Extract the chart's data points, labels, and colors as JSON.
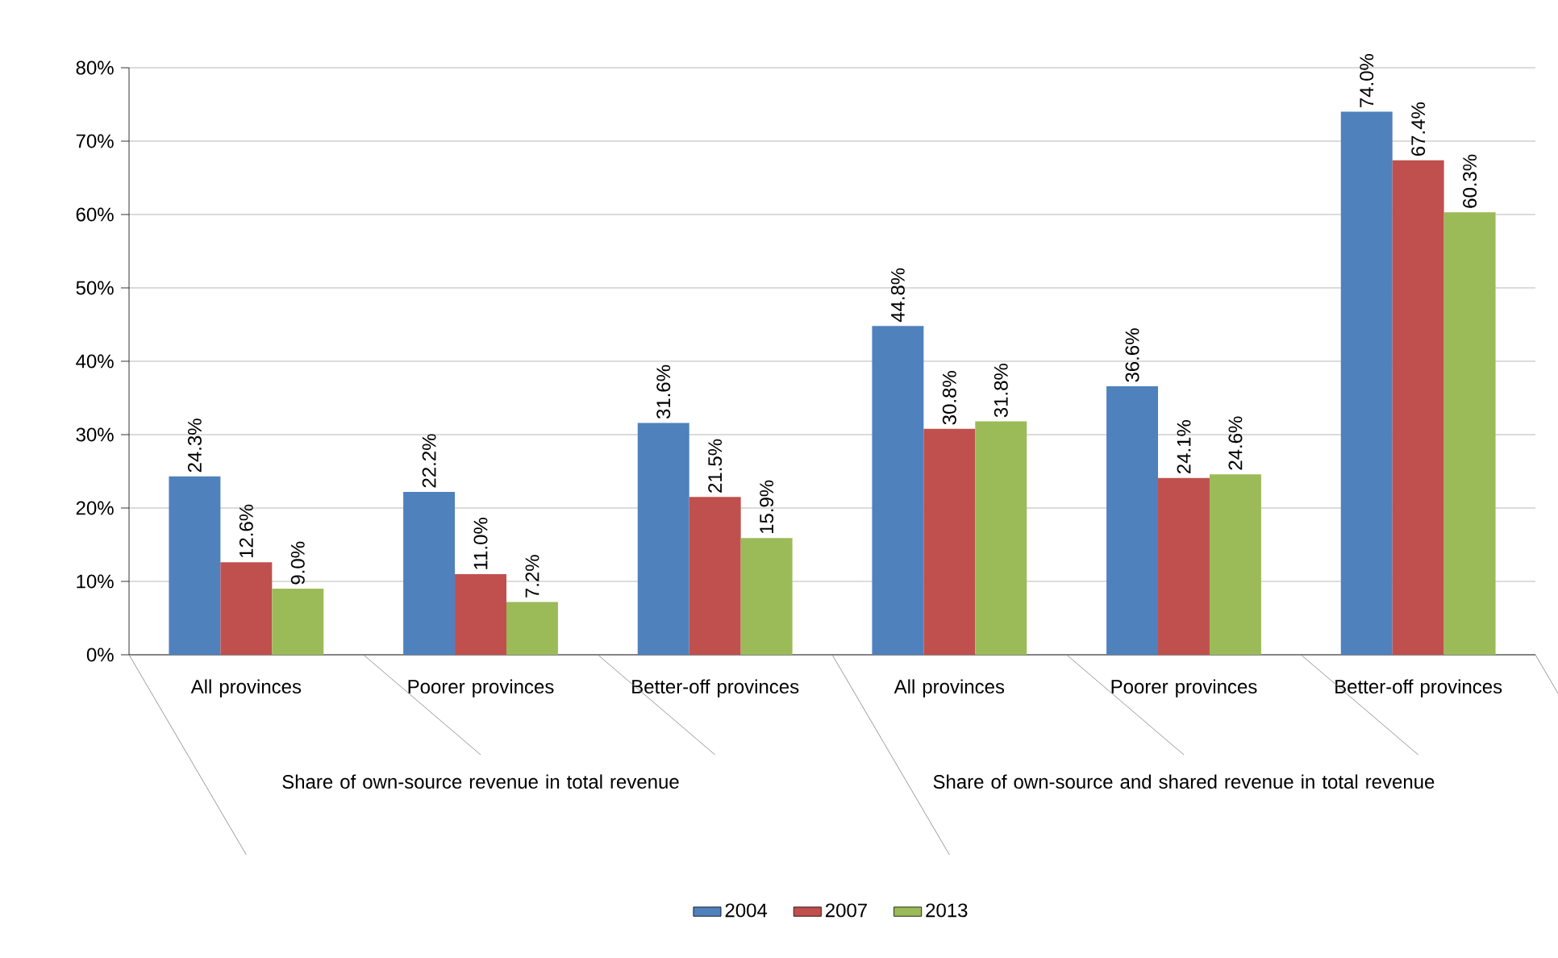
{
  "chart_data": {
    "type": "bar",
    "categories": [
      "All provinces",
      "Poorer provinces",
      "Better-off provinces",
      "All provinces",
      "Poorer provinces",
      "Better-off provinces"
    ],
    "annotations": [
      "Share of own-source revenue in total revenue",
      "Share of own-source and shared revenue in total revenue"
    ],
    "series": [
      {
        "name": "2004",
        "color": "#4f81bd",
        "values": [
          24.3,
          22.2,
          31.6,
          44.8,
          36.6,
          74.0
        ],
        "value_labels": [
          "24.3%",
          "22.2%",
          "31.6%",
          "44.8%",
          "36.6%",
          "74.0%"
        ]
      },
      {
        "name": "2007",
        "color": "#c0504d",
        "values": [
          12.6,
          11.0,
          21.5,
          30.8,
          24.1,
          67.4
        ],
        "value_labels": [
          "12.6%",
          "11.0%",
          "21.5%",
          "30.8%",
          "24.1%",
          "67.4%"
        ]
      },
      {
        "name": "2013",
        "color": "#9bbb59",
        "values": [
          9.0,
          7.2,
          15.9,
          31.8,
          24.6,
          60.3
        ],
        "value_labels": [
          "9.0%",
          "7.2%",
          "15.9%",
          "31.8%",
          "24.6%",
          "60.3%"
        ]
      }
    ],
    "ylim": [
      0,
      80
    ],
    "yticks": [
      {
        "value": 0,
        "label": "0%"
      },
      {
        "value": 10,
        "label": "10%"
      },
      {
        "value": 20,
        "label": "20%"
      },
      {
        "value": 30,
        "label": "30%"
      },
      {
        "value": 40,
        "label": "40%"
      },
      {
        "value": 50,
        "label": "50%"
      },
      {
        "value": 60,
        "label": "60%"
      },
      {
        "value": 70,
        "label": "70%"
      },
      {
        "value": 80,
        "label": "80%"
      }
    ],
    "grid": "y",
    "legend": "bottom"
  }
}
